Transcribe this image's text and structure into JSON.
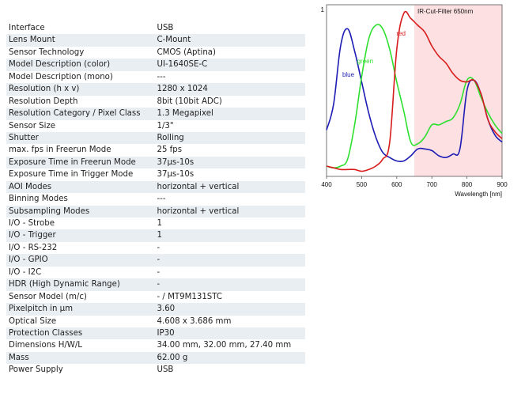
{
  "specs": [
    {
      "label": "Interface",
      "value": "USB"
    },
    {
      "label": "Lens Mount",
      "value": "C-Mount"
    },
    {
      "label": "Sensor Technology",
      "value": "CMOS (Aptina)"
    },
    {
      "label": "Model Description (color)",
      "value": "UI-1640SE-C"
    },
    {
      "label": "Model Description (mono)",
      "value": "---"
    },
    {
      "label": "Resolution (h x v)",
      "value": "1280 x 1024"
    },
    {
      "label": "Resolution Depth",
      "value": "8bit (10bit ADC)"
    },
    {
      "label": "Resolution Category / Pixel Class",
      "value": "1.3 Megapixel"
    },
    {
      "label": "Sensor Size",
      "value": "1/3\""
    },
    {
      "label": "Shutter",
      "value": "Rolling"
    },
    {
      "label": "max. fps in Freerun Mode",
      "value": "25 fps"
    },
    {
      "label": "Exposure Time in Freerun Mode",
      "value": "37µs-10s"
    },
    {
      "label": "Exposure Time in Trigger Mode",
      "value": "37µs-10s"
    },
    {
      "label": "AOI Modes",
      "value": "horizontal + vertical"
    },
    {
      "label": "Binning Modes",
      "value": "---"
    },
    {
      "label": "Subsampling Modes",
      "value": "horizontal + vertical"
    },
    {
      "label": "I/O - Strobe",
      "value": "1"
    },
    {
      "label": "I/O - Trigger",
      "value": "1"
    },
    {
      "label": "I/O - RS-232",
      "value": "-"
    },
    {
      "label": "I/O - GPIO",
      "value": "-"
    },
    {
      "label": "I/O - I2C",
      "value": "-"
    },
    {
      "label": "HDR (High Dynamic Range)",
      "value": "-"
    },
    {
      "label": "Sensor Model (m/c)",
      "value": "- / MT9M131STC"
    },
    {
      "label": "Pixelpitch in µm",
      "value": "3.60"
    },
    {
      "label": "Optical Size",
      "value": "4.608 x 3.686 mm"
    },
    {
      "label": "Protection Classes",
      "value": "IP30"
    },
    {
      "label": "Dimensions H/W/L",
      "value": "34.00 mm, 32.00 mm, 27.40 mm"
    },
    {
      "label": "Mass",
      "value": "62.00 g"
    },
    {
      "label": "Power Supply",
      "value": "USB"
    }
  ],
  "chart_data": {
    "type": "line",
    "title": "",
    "xlabel": "Wavelength [nm]",
    "ylabel": "",
    "xlim": [
      400,
      900
    ],
    "ylim": [
      0,
      1
    ],
    "x_ticks": [
      "400",
      "500",
      "600",
      "700",
      "800",
      "900"
    ],
    "y_ticks": [
      "1"
    ],
    "grid": false,
    "annotation": "IR-Cut-Filter 650nm",
    "ir_cut_filter_range": [
      650,
      900
    ],
    "colors": {
      "blue": "#1c1cb4",
      "green": "#2ee02e",
      "red": "#d81c1c",
      "ir_band": "#fde0e2"
    },
    "series": [
      {
        "name": "blue",
        "x": [
          400,
          420,
          440,
          460,
          480,
          500,
          520,
          540,
          560,
          580,
          600,
          620,
          640,
          660,
          680,
          700,
          720,
          740,
          760,
          780,
          800,
          820,
          840,
          860,
          880,
          900
        ],
        "y": [
          0.27,
          0.42,
          0.76,
          0.86,
          0.73,
          0.55,
          0.37,
          0.23,
          0.14,
          0.11,
          0.09,
          0.09,
          0.12,
          0.16,
          0.16,
          0.15,
          0.12,
          0.11,
          0.13,
          0.16,
          0.5,
          0.56,
          0.48,
          0.33,
          0.24,
          0.2
        ]
      },
      {
        "name": "green",
        "x": [
          400,
          420,
          440,
          460,
          480,
          500,
          520,
          540,
          560,
          580,
          600,
          620,
          640,
          660,
          680,
          700,
          720,
          740,
          760,
          780,
          800,
          820,
          840,
          860,
          880,
          900
        ],
        "y": [
          0.06,
          0.05,
          0.06,
          0.1,
          0.3,
          0.58,
          0.8,
          0.88,
          0.86,
          0.74,
          0.55,
          0.38,
          0.2,
          0.19,
          0.23,
          0.3,
          0.3,
          0.32,
          0.34,
          0.42,
          0.56,
          0.56,
          0.46,
          0.37,
          0.3,
          0.25
        ]
      },
      {
        "name": "red",
        "x": [
          400,
          420,
          440,
          460,
          480,
          500,
          520,
          540,
          560,
          580,
          600,
          620,
          640,
          660,
          680,
          700,
          720,
          740,
          760,
          780,
          800,
          820,
          840,
          860,
          880,
          900
        ],
        "y": [
          0.06,
          0.05,
          0.04,
          0.04,
          0.04,
          0.03,
          0.04,
          0.06,
          0.1,
          0.2,
          0.74,
          0.95,
          0.92,
          0.88,
          0.84,
          0.76,
          0.7,
          0.66,
          0.6,
          0.56,
          0.55,
          0.56,
          0.48,
          0.33,
          0.26,
          0.22
        ]
      }
    ]
  }
}
